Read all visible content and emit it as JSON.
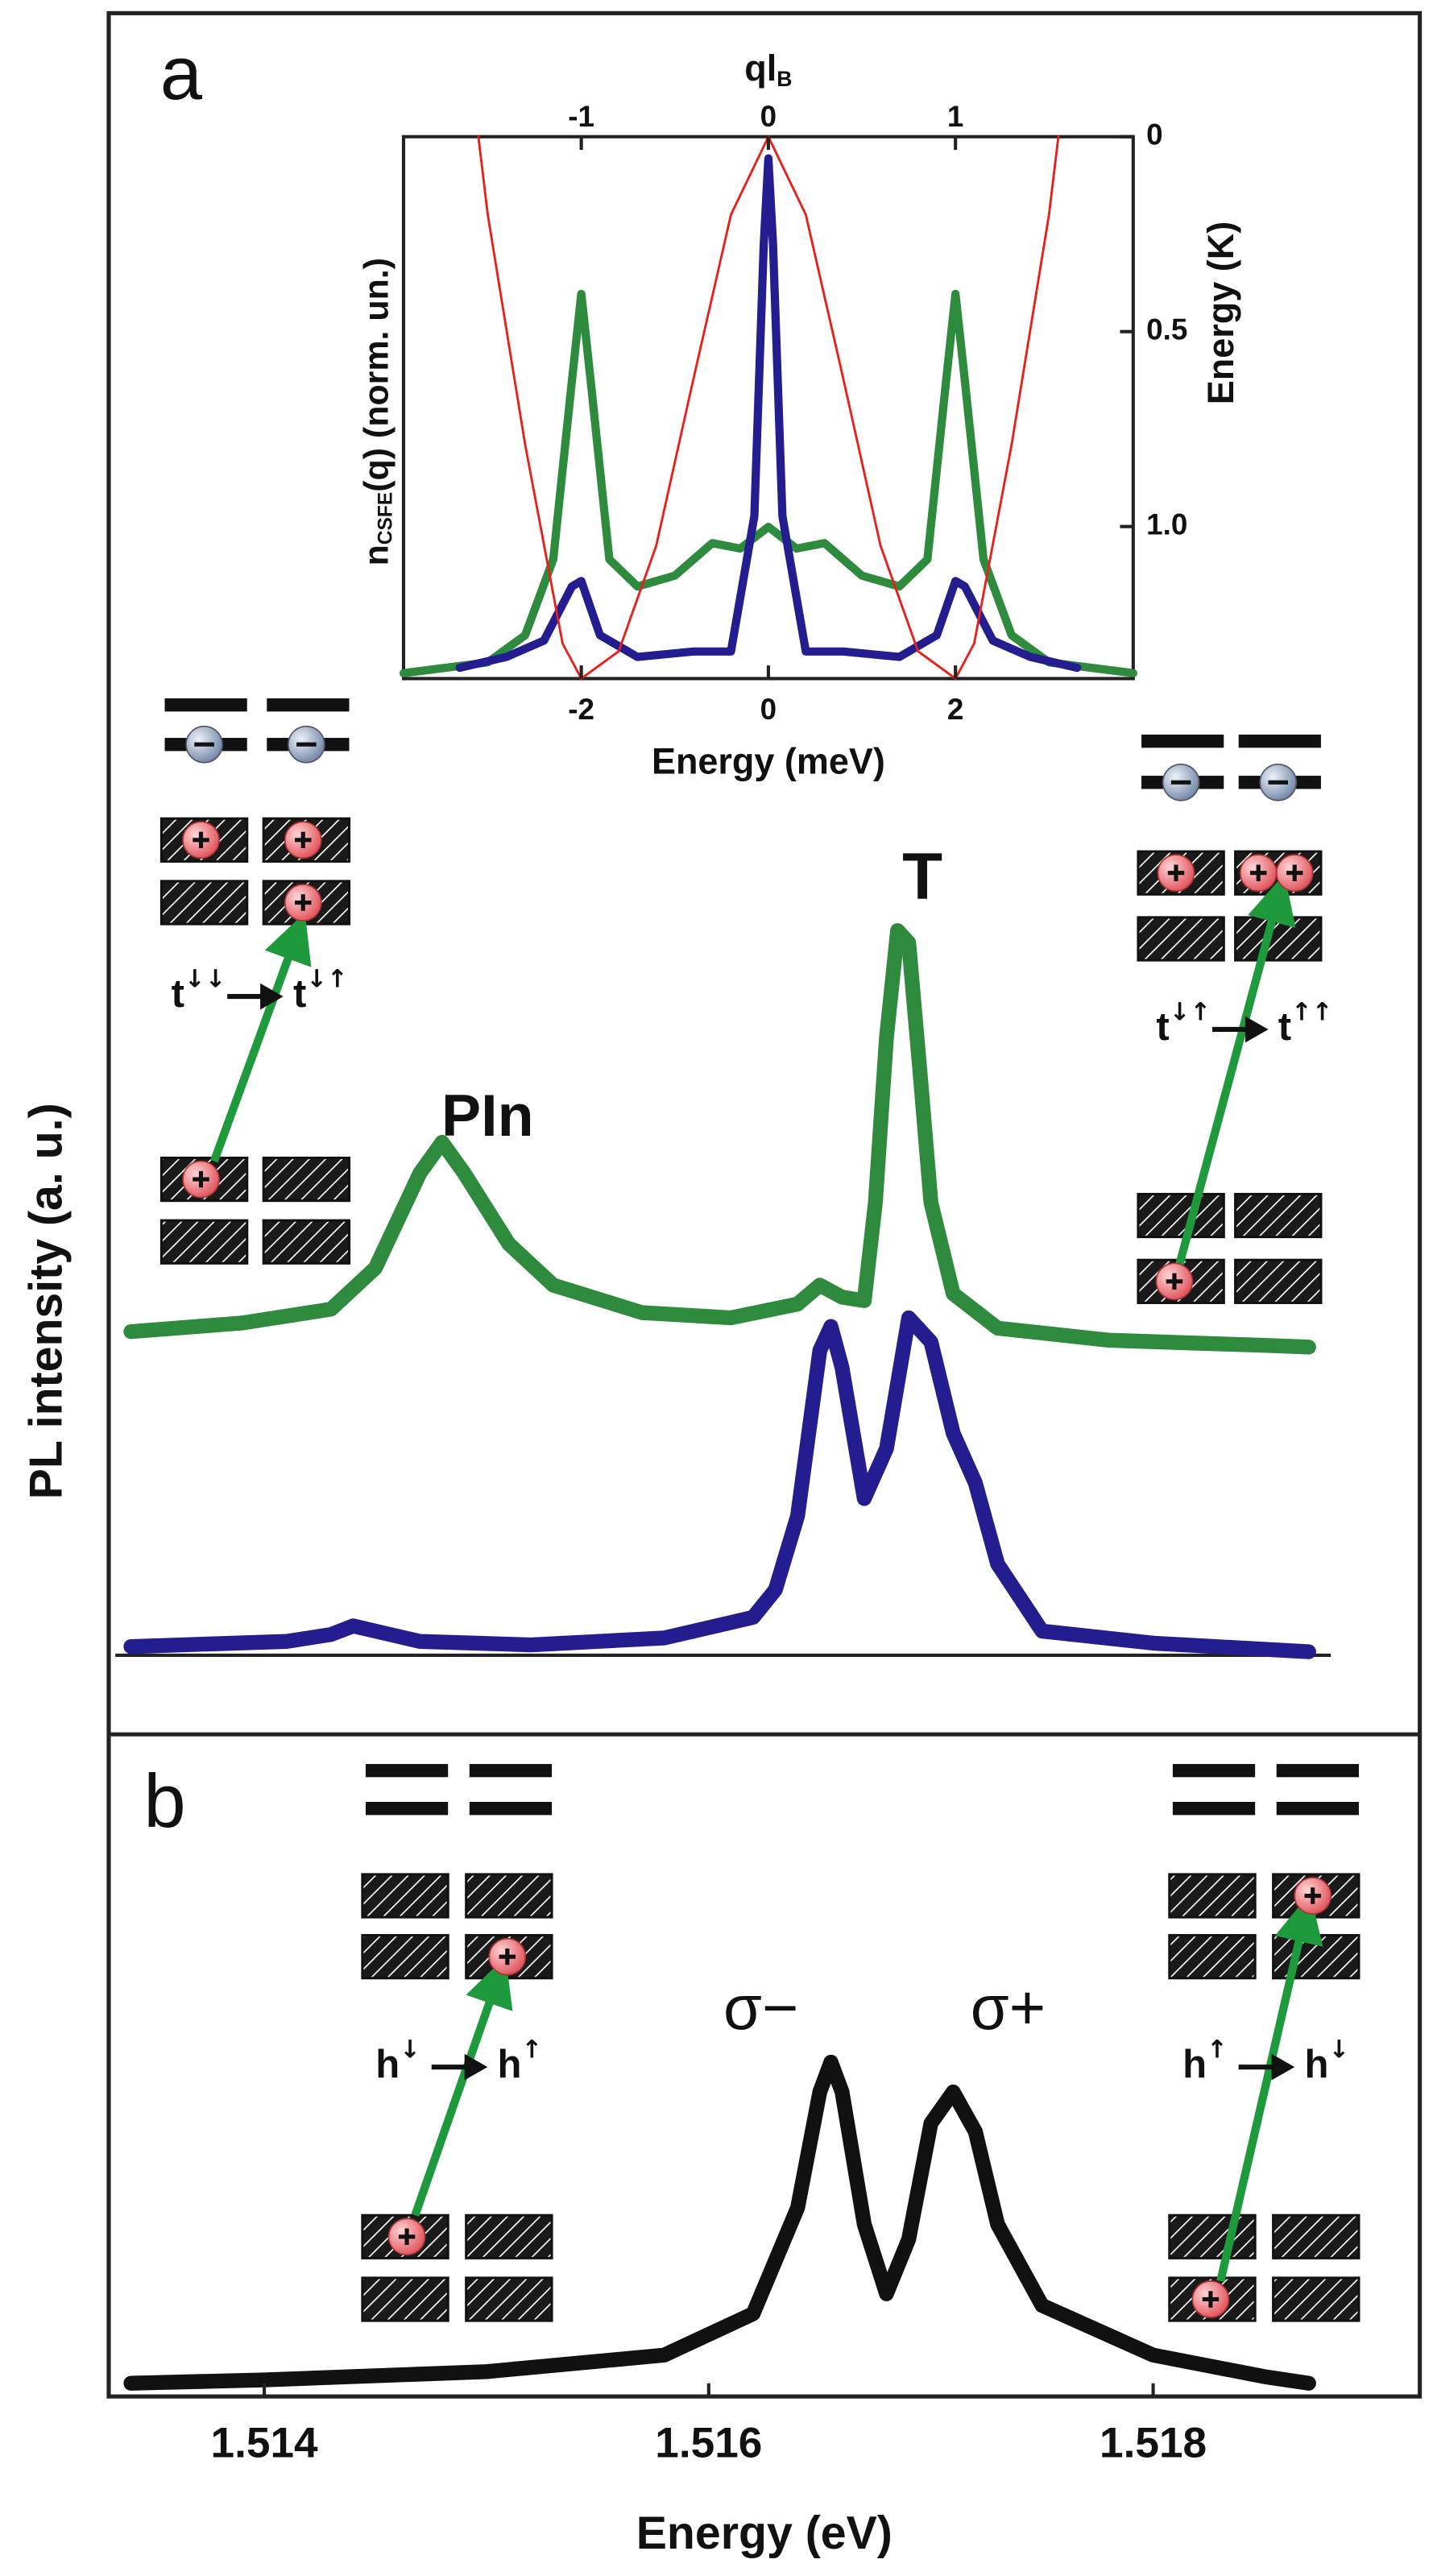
{
  "chart_data": [
    {
      "type": "line",
      "panel_label": "a",
      "ylabel": "PL intensity (a. u.)",
      "xlim": [
        1.5133,
        1.5192
      ],
      "ylim": [
        0,
        10
      ],
      "series": [
        {
          "color": "#2e8b3e",
          "x": [
            1.5134,
            1.5139,
            1.5143,
            1.5145,
            1.5147,
            1.5148,
            1.5149,
            1.5151,
            1.5153,
            1.5157,
            1.5161,
            1.5164,
            1.5165,
            1.5166,
            1.5167,
            1.51675,
            1.5168,
            1.51685,
            1.5169,
            1.51695,
            1.517,
            1.5171,
            1.5173,
            1.5178,
            1.5185,
            1.5187
          ],
          "values": [
            2.34,
            2.39,
            2.47,
            2.71,
            3.26,
            3.44,
            3.26,
            2.85,
            2.61,
            2.45,
            2.42,
            2.5,
            2.61,
            2.54,
            2.52,
            3.09,
            4.05,
            4.67,
            4.6,
            3.86,
            3.09,
            2.56,
            2.36,
            2.29,
            2.26,
            2.25
          ]
        },
        {
          "color": "#231d8f",
          "x": [
            1.5134,
            1.5141,
            1.5143,
            1.5144,
            1.5145,
            1.5147,
            1.5152,
            1.5158,
            1.5162,
            1.5163,
            1.5164,
            1.5165,
            1.51655,
            1.5166,
            1.5167,
            1.5168,
            1.5169,
            1.517,
            1.5171,
            1.5172,
            1.5173,
            1.5175,
            1.518,
            1.5187
          ],
          "values": [
            0.51,
            0.54,
            0.58,
            0.63,
            0.6,
            0.54,
            0.52,
            0.56,
            0.68,
            0.84,
            1.27,
            2.23,
            2.37,
            2.13,
            1.37,
            1.66,
            2.42,
            2.28,
            1.75,
            1.46,
            0.99,
            0.6,
            0.53,
            0.48
          ]
        }
      ],
      "annotations": [
        "PIn",
        "T"
      ],
      "diagrams": [
        {
          "from": "t",
          "from_spin": "↓↓",
          "to": "t",
          "to_spin": "↓↑"
        },
        {
          "from": "t",
          "from_spin": "↓↑",
          "to": "t",
          "to_spin": "↑↑"
        }
      ]
    },
    {
      "type": "line",
      "xlabel": "Energy (meV)",
      "xlim": [
        -3.9,
        3.9
      ],
      "xticks": [
        -2,
        0,
        2
      ],
      "x2label": "ql",
      "x2label_sub": "B",
      "x2lim": [
        -1.95,
        1.95
      ],
      "x2ticks": [
        -1,
        0,
        1
      ],
      "ylabel": "n",
      "ylabel_sub": "CSFE",
      "ylabel_rest": "(q)   (norm. un.)",
      "ylim": [
        0,
        1
      ],
      "y2label": "Energy  (K)",
      "y2lim": [
        1.39,
        0
      ],
      "y2ticks": [
        0,
        0.5,
        {
          "value": 1.0,
          "label": "1.0"
        }
      ],
      "series": [
        {
          "color": "#2e8b3e",
          "x": [
            -3.9,
            -3.0,
            -2.6,
            -2.3,
            -2.1,
            -2.0,
            -1.9,
            -1.7,
            -1.4,
            -1.0,
            -0.6,
            -0.3,
            0,
            0.3,
            0.6,
            1.0,
            1.4,
            1.7,
            1.9,
            2.0,
            2.1,
            2.3,
            2.6,
            3.0,
            3.9
          ],
          "values": [
            0.01,
            0.03,
            0.08,
            0.22,
            0.55,
            0.71,
            0.55,
            0.22,
            0.17,
            0.19,
            0.25,
            0.24,
            0.28,
            0.24,
            0.25,
            0.19,
            0.17,
            0.22,
            0.55,
            0.71,
            0.55,
            0.22,
            0.08,
            0.03,
            0.01
          ]
        },
        {
          "color": "#231d8f",
          "x": [
            -3.3,
            -2.8,
            -2.4,
            -2.1,
            -2.0,
            -1.8,
            -1.4,
            -0.8,
            -0.4,
            -0.15,
            -0.05,
            0,
            0.05,
            0.15,
            0.4,
            0.8,
            1.4,
            1.8,
            2.0,
            2.1,
            2.4,
            2.8,
            3.3
          ],
          "values": [
            0.02,
            0.04,
            0.07,
            0.17,
            0.18,
            0.08,
            0.04,
            0.05,
            0.05,
            0.3,
            0.8,
            0.96,
            0.8,
            0.3,
            0.05,
            0.05,
            0.04,
            0.08,
            0.18,
            0.17,
            0.07,
            0.04,
            0.02
          ]
        },
        {
          "color": "#e8201c",
          "x_axis": "x2",
          "axis": "y2",
          "x": [
            -1.55,
            -1.5,
            -1.3,
            -1.1,
            -1.0,
            -0.8,
            -0.6,
            -0.4,
            -0.2,
            0,
            0.2,
            0.4,
            0.6,
            0.8,
            1.0,
            1.1,
            1.3,
            1.5,
            1.55
          ],
          "values": [
            0,
            0.2,
            0.79,
            1.3,
            1.39,
            1.32,
            1.05,
            0.62,
            0.2,
            0,
            0.2,
            0.62,
            1.05,
            1.32,
            1.39,
            1.3,
            0.79,
            0.2,
            0
          ]
        }
      ]
    },
    {
      "type": "line",
      "panel_label": "b",
      "xlabel": "Energy (eV)",
      "xlim": [
        1.5133,
        1.5192
      ],
      "xticks": [
        1.514,
        1.516,
        1.518
      ],
      "ylim": [
        0,
        4
      ],
      "series": [
        {
          "color": "#111111",
          "x": [
            1.5134,
            1.514,
            1.515,
            1.5158,
            1.5162,
            1.5164,
            1.5165,
            1.51655,
            1.5166,
            1.5167,
            1.5168,
            1.5169,
            1.517,
            1.5171,
            1.5172,
            1.5173,
            1.5175,
            1.518,
            1.5185,
            1.5187
          ],
          "values": [
            0.08,
            0.1,
            0.15,
            0.25,
            0.5,
            1.14,
            1.84,
            2.02,
            1.84,
            1.04,
            0.62,
            0.95,
            1.65,
            1.84,
            1.6,
            1.04,
            0.55,
            0.25,
            0.12,
            0.08
          ]
        }
      ],
      "annotations": [
        "σ−",
        "σ+"
      ],
      "diagrams": [
        {
          "from": "h",
          "from_spin": "↓",
          "to": "h",
          "to_spin": "↑"
        },
        {
          "from": "h",
          "from_spin": "↑",
          "to": "h",
          "to_spin": "↓"
        }
      ]
    }
  ]
}
